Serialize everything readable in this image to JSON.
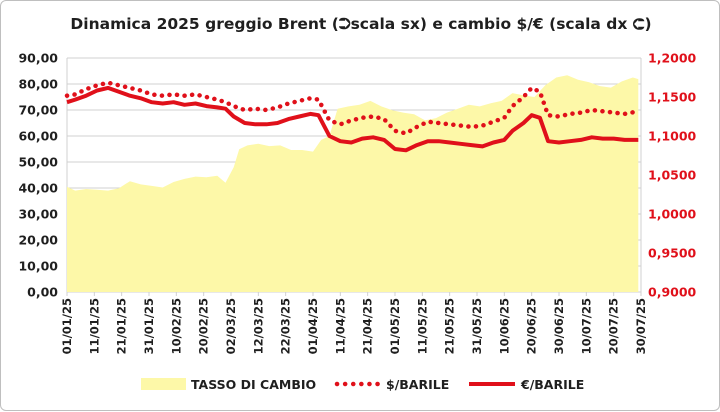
{
  "chart_data": {
    "type": "area",
    "title": "Dinamica 2025 greggio Brent (⮊scala sx) e cambio $/€ (scala dx ⮈)",
    "colors": {
      "tasso": "#fdf8a8",
      "barile": "#e0101a",
      "left_axis_text": "#1f1f1f",
      "right_axis_text": "#e0101a",
      "grid": "#d0d0d0"
    },
    "y_left": {
      "ticks": [
        "0,00",
        "10,00",
        "20,00",
        "30,00",
        "40,00",
        "50,00",
        "60,00",
        "70,00",
        "80,00",
        "90,00"
      ],
      "ylim": [
        0,
        90
      ]
    },
    "y_right": {
      "ticks": [
        "0,9000",
        "0,9500",
        "1,0000",
        "1,0500",
        "1,1000",
        "1,1500",
        "1,2000"
      ],
      "ylim": [
        0.9,
        1.2
      ]
    },
    "x_ticks": [
      "01/01/25",
      "11/01/25",
      "21/01/25",
      "31/01/25",
      "10/02/25",
      "20/02/25",
      "02/03/25",
      "12/03/25",
      "22/03/25",
      "01/04/25",
      "11/04/25",
      "21/04/25",
      "01/05/25",
      "11/05/25",
      "21/05/25",
      "31/05/25",
      "10/06/25",
      "20/06/25",
      "30/06/25",
      "10/07/25",
      "20/07/25",
      "30/07/25"
    ],
    "grid": true,
    "legend_position": "bottom",
    "series": [
      {
        "name": "TASSO DI CAMBIO",
        "style": "area",
        "axis": "right",
        "x": [
          "2025-01-01",
          "2025-01-04",
          "2025-01-08",
          "2025-01-12",
          "2025-01-16",
          "2025-01-20",
          "2025-01-24",
          "2025-01-28",
          "2025-02-01",
          "2025-02-05",
          "2025-02-09",
          "2025-02-13",
          "2025-02-17",
          "2025-02-21",
          "2025-02-25",
          "2025-02-28",
          "2025-03-03",
          "2025-03-05",
          "2025-03-08",
          "2025-03-12",
          "2025-03-16",
          "2025-03-20",
          "2025-03-24",
          "2025-03-28",
          "2025-04-01",
          "2025-04-04",
          "2025-04-07",
          "2025-04-10",
          "2025-04-14",
          "2025-04-18",
          "2025-04-22",
          "2025-04-26",
          "2025-04-30",
          "2025-05-04",
          "2025-05-08",
          "2025-05-12",
          "2025-05-16",
          "2025-05-20",
          "2025-05-24",
          "2025-05-28",
          "2025-06-01",
          "2025-06-05",
          "2025-06-09",
          "2025-06-13",
          "2025-06-17",
          "2025-06-21",
          "2025-06-25",
          "2025-06-29",
          "2025-07-03",
          "2025-07-07",
          "2025-07-11",
          "2025-07-15",
          "2025-07-19",
          "2025-07-23",
          "2025-07-27",
          "2025-07-29"
        ],
        "values": [
          1.035,
          1.03,
          1.032,
          1.031,
          1.03,
          1.033,
          1.042,
          1.038,
          1.036,
          1.034,
          1.041,
          1.045,
          1.048,
          1.047,
          1.049,
          1.04,
          1.06,
          1.083,
          1.088,
          1.09,
          1.087,
          1.088,
          1.082,
          1.082,
          1.08,
          1.095,
          1.1,
          1.135,
          1.138,
          1.14,
          1.145,
          1.138,
          1.133,
          1.13,
          1.128,
          1.12,
          1.123,
          1.13,
          1.135,
          1.14,
          1.138,
          1.142,
          1.145,
          1.155,
          1.152,
          1.15,
          1.165,
          1.175,
          1.178,
          1.172,
          1.169,
          1.164,
          1.162,
          1.17,
          1.175,
          1.173
        ]
      },
      {
        "name": "$/BARILE",
        "style": "dotted",
        "axis": "left",
        "x": [
          "2025-01-01",
          "2025-01-04",
          "2025-01-08",
          "2025-01-12",
          "2025-01-16",
          "2025-01-20",
          "2025-01-24",
          "2025-01-28",
          "2025-02-01",
          "2025-02-05",
          "2025-02-09",
          "2025-02-13",
          "2025-02-17",
          "2025-02-21",
          "2025-02-25",
          "2025-02-28",
          "2025-03-03",
          "2025-03-07",
          "2025-03-11",
          "2025-03-15",
          "2025-03-19",
          "2025-03-23",
          "2025-03-27",
          "2025-03-31",
          "2025-04-03",
          "2025-04-07",
          "2025-04-11",
          "2025-04-15",
          "2025-04-19",
          "2025-04-23",
          "2025-04-27",
          "2025-05-01",
          "2025-05-05",
          "2025-05-09",
          "2025-05-13",
          "2025-05-17",
          "2025-05-21",
          "2025-05-25",
          "2025-05-29",
          "2025-06-02",
          "2025-06-06",
          "2025-06-10",
          "2025-06-13",
          "2025-06-17",
          "2025-06-20",
          "2025-06-23",
          "2025-06-26",
          "2025-06-30",
          "2025-07-04",
          "2025-07-08",
          "2025-07-12",
          "2025-07-16",
          "2025-07-20",
          "2025-07-24",
          "2025-07-29"
        ],
        "values": [
          75.5,
          76.0,
          78.0,
          79.5,
          80.5,
          79.5,
          78.5,
          77.5,
          76.0,
          75.5,
          76.0,
          75.5,
          76.0,
          75.0,
          74.0,
          73.0,
          71.5,
          70.0,
          70.5,
          70.0,
          71.0,
          72.5,
          73.5,
          74.5,
          74.0,
          66.0,
          64.5,
          66.0,
          67.0,
          67.5,
          66.5,
          62.0,
          61.0,
          63.5,
          65.5,
          65.0,
          64.5,
          64.0,
          63.5,
          64.0,
          65.5,
          67.0,
          71.5,
          75.0,
          78.5,
          77.0,
          68.0,
          67.5,
          68.5,
          69.0,
          70.0,
          69.5,
          69.0,
          68.5,
          69.5
        ]
      },
      {
        "name": "€/BARILE",
        "style": "line",
        "axis": "left",
        "x": [
          "2025-01-01",
          "2025-01-04",
          "2025-01-08",
          "2025-01-12",
          "2025-01-16",
          "2025-01-20",
          "2025-01-24",
          "2025-01-28",
          "2025-02-01",
          "2025-02-05",
          "2025-02-09",
          "2025-02-13",
          "2025-02-17",
          "2025-02-21",
          "2025-02-25",
          "2025-02-28",
          "2025-03-03",
          "2025-03-07",
          "2025-03-11",
          "2025-03-15",
          "2025-03-19",
          "2025-03-23",
          "2025-03-27",
          "2025-03-31",
          "2025-04-03",
          "2025-04-07",
          "2025-04-11",
          "2025-04-15",
          "2025-04-19",
          "2025-04-23",
          "2025-04-27",
          "2025-05-01",
          "2025-05-05",
          "2025-05-09",
          "2025-05-13",
          "2025-05-17",
          "2025-05-21",
          "2025-05-25",
          "2025-05-29",
          "2025-06-02",
          "2025-06-06",
          "2025-06-10",
          "2025-06-13",
          "2025-06-17",
          "2025-06-20",
          "2025-06-23",
          "2025-06-26",
          "2025-06-30",
          "2025-07-04",
          "2025-07-08",
          "2025-07-12",
          "2025-07-16",
          "2025-07-20",
          "2025-07-24",
          "2025-07-29"
        ],
        "values": [
          73.0,
          74.0,
          75.5,
          77.5,
          78.5,
          77.0,
          75.5,
          74.5,
          73.0,
          72.5,
          73.0,
          72.0,
          72.5,
          71.5,
          71.0,
          70.5,
          67.5,
          65.0,
          64.5,
          64.5,
          65.0,
          66.5,
          67.5,
          68.5,
          68.0,
          60.0,
          58.0,
          57.5,
          59.0,
          59.5,
          58.5,
          55.0,
          54.5,
          56.5,
          58.0,
          58.0,
          57.5,
          57.0,
          56.5,
          56.0,
          57.5,
          58.5,
          62.0,
          65.0,
          68.0,
          67.0,
          58.0,
          57.5,
          58.0,
          58.5,
          59.5,
          59.0,
          59.0,
          58.5,
          58.5
        ]
      }
    ]
  }
}
